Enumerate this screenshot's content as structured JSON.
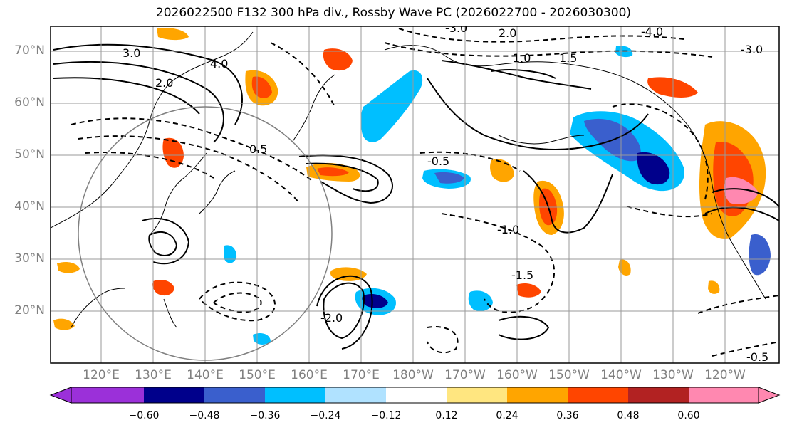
{
  "title": "2026022500 F132 300 hPa div., Rossby Wave PC (2026022700 - 2026030300)",
  "map": {
    "projection": "Plate Carree, Pacific-centred",
    "lon_range": [
      110,
      245
    ],
    "lat_range": [
      10,
      75
    ],
    "lat_labels": [
      "70°N",
      "60°N",
      "50°N",
      "40°N",
      "30°N",
      "20°N"
    ],
    "lon_labels": [
      "120°E",
      "130°E",
      "140°E",
      "150°E",
      "160°E",
      "170°E",
      "180°W",
      "170°W",
      "160°W",
      "150°W",
      "140°W",
      "130°W",
      "120°W"
    ],
    "contour_labels": [
      "3.0",
      "4.0",
      "2.0",
      "1.0",
      "1.5",
      "0.5",
      "-0.5",
      "-1.0",
      "-1.5",
      "-2.0",
      "-3.0",
      "-4.0",
      "-3.0",
      "2.0",
      "-0.5"
    ]
  },
  "colorbar": {
    "ticks": [
      "−0.60",
      "−0.48",
      "−0.36",
      "−0.24",
      "−0.12",
      "0.12",
      "0.24",
      "0.36",
      "0.48",
      "0.60"
    ],
    "colors": [
      "#9b30d9",
      "#00008b",
      "#3a5fcd",
      "#00bfff",
      "#b0e2ff",
      "#ffffff",
      "#ffe680",
      "#ffa500",
      "#ff4500",
      "#b22222",
      "#ff88b0"
    ]
  }
}
